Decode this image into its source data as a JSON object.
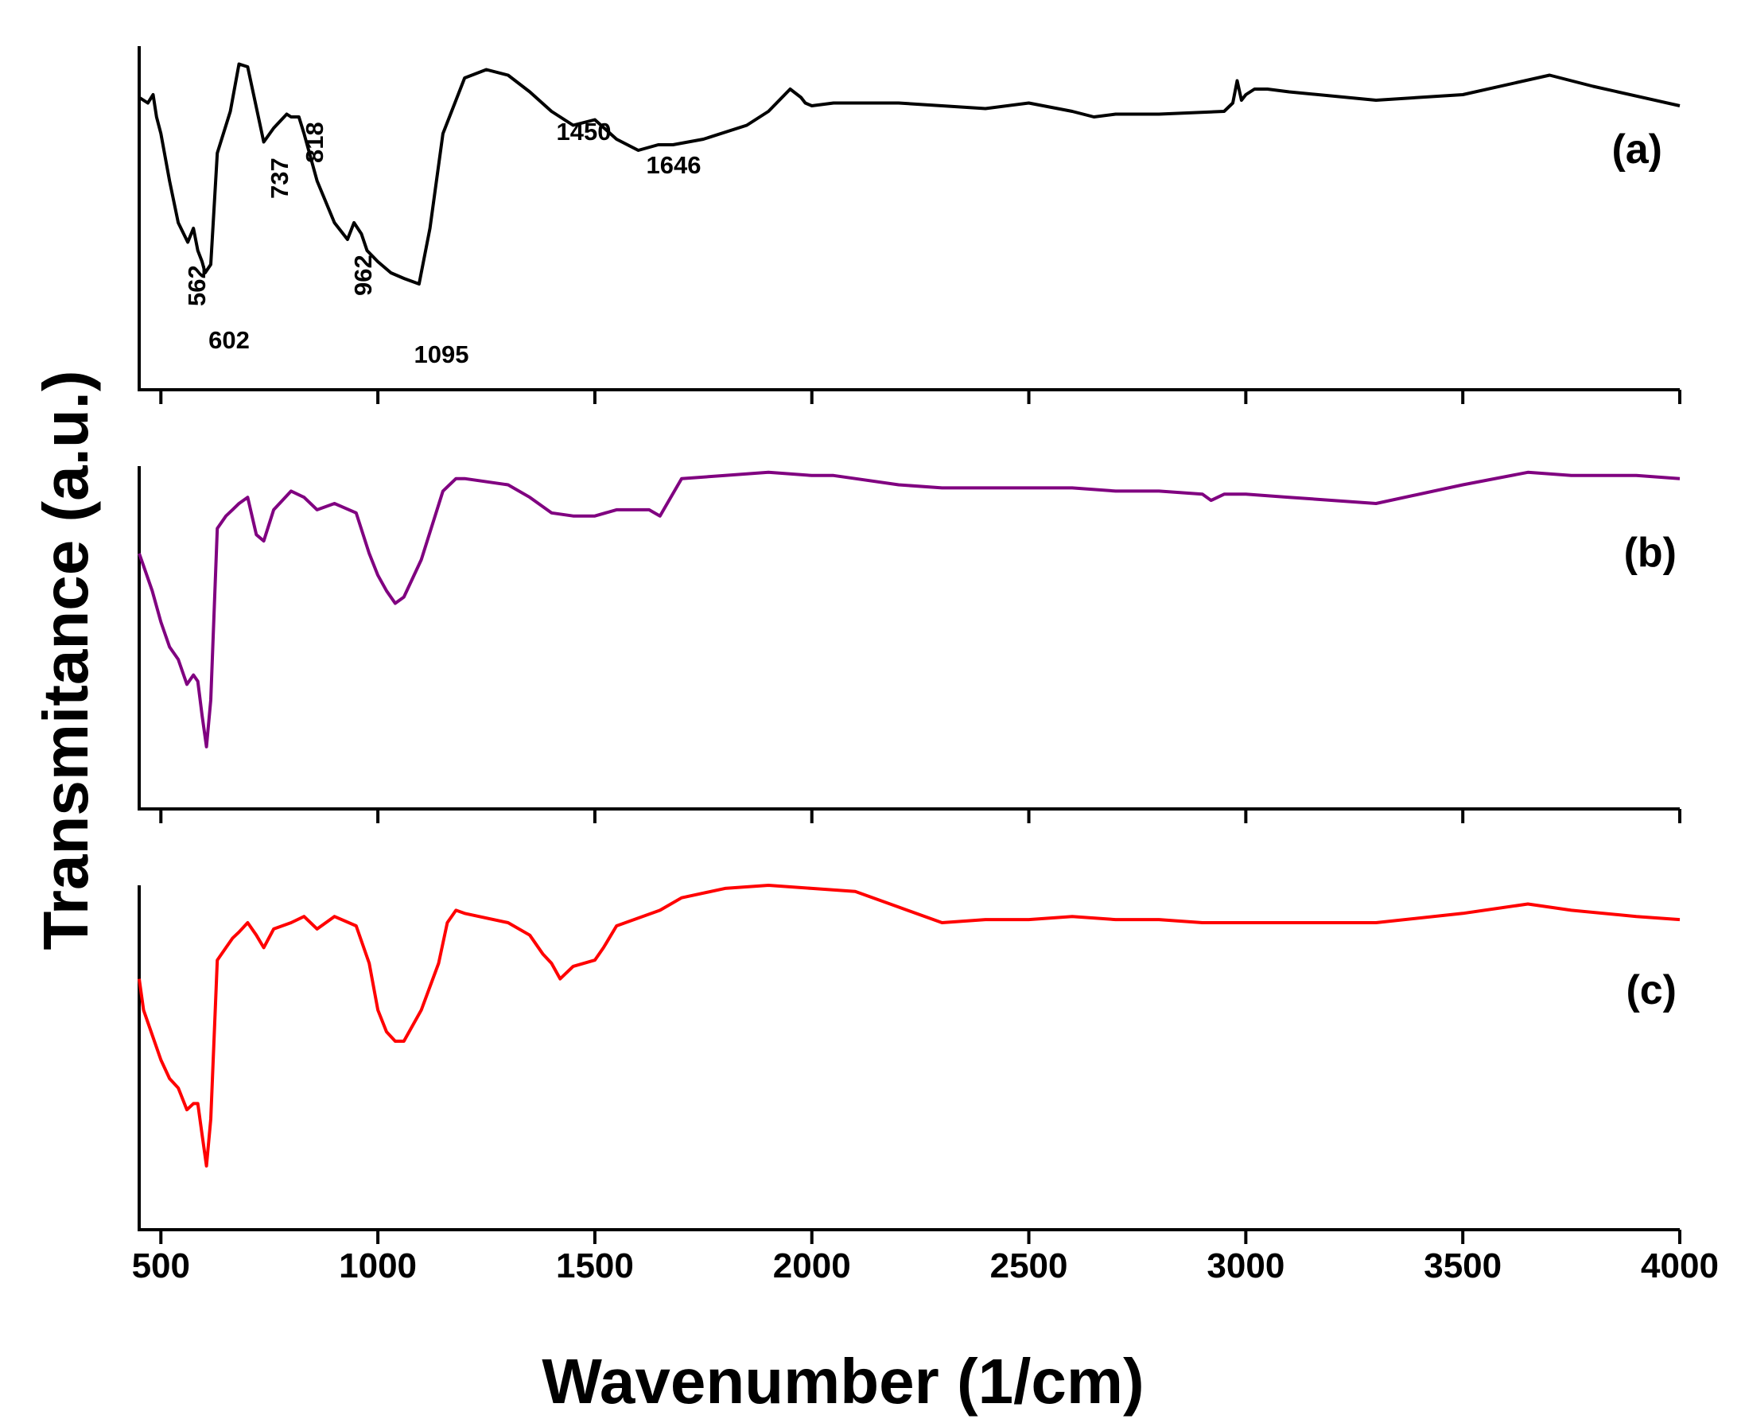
{
  "chart_data": {
    "type": "line",
    "title": "",
    "xlabel": "Wavenumber (1/cm)",
    "ylabel": "Transmitance (a.u.)",
    "xlim": [
      450,
      4000
    ],
    "x_ticks": [
      500,
      1000,
      1500,
      2000,
      2500,
      3000,
      3500,
      4000
    ],
    "x_tick_labels": [
      "500",
      "1000",
      "1500",
      "2000",
      "2500",
      "3000",
      "3500",
      "4000"
    ],
    "panels": [
      {
        "label": "(a)",
        "color": "#000000",
        "ylim": [
          0,
          100
        ],
        "x": [
          450,
          470,
          482,
          490,
          500,
          520,
          540,
          562,
          575,
          585,
          595,
          602,
          615,
          630,
          660,
          680,
          700,
          737,
          760,
          790,
          800,
          818,
          830,
          860,
          900,
          930,
          945,
          962,
          975,
          1000,
          1030,
          1060,
          1095,
          1120,
          1150,
          1200,
          1250,
          1300,
          1350,
          1400,
          1450,
          1500,
          1550,
          1600,
          1646,
          1680,
          1750,
          1850,
          1900,
          1950,
          1975,
          1985,
          2000,
          2050,
          2100,
          2200,
          2300,
          2400,
          2500,
          2600,
          2650,
          2700,
          2800,
          2950,
          2970,
          2980,
          2990,
          3000,
          3020,
          3050,
          3100,
          3300,
          3500,
          3700,
          3800,
          4000
        ],
        "values": [
          85,
          83,
          86,
          78,
          72,
          55,
          40,
          33,
          38,
          30,
          26,
          22,
          25,
          65,
          80,
          97,
          96,
          69,
          74,
          79,
          78,
          78,
          72,
          55,
          40,
          34,
          40,
          36,
          30,
          26,
          22,
          20,
          18,
          38,
          72,
          92,
          95,
          93,
          87,
          80,
          75,
          77,
          70,
          66,
          68,
          68,
          70,
          75,
          80,
          88,
          85,
          83,
          82,
          83,
          83,
          83,
          82,
          81,
          83,
          80,
          78,
          79,
          79,
          80,
          83,
          91,
          84,
          86,
          88,
          88,
          87,
          84,
          86,
          93,
          89,
          82
        ]
      },
      {
        "label": "(b)",
        "color": "#800080",
        "ylim": [
          0,
          100
        ],
        "x": [
          450,
          460,
          480,
          500,
          520,
          540,
          560,
          575,
          585,
          595,
          605,
          615,
          630,
          650,
          665,
          680,
          700,
          720,
          737,
          760,
          800,
          830,
          860,
          900,
          950,
          980,
          1000,
          1020,
          1040,
          1060,
          1100,
          1150,
          1180,
          1200,
          1300,
          1350,
          1400,
          1450,
          1500,
          1550,
          1600,
          1625,
          1650,
          1700,
          1800,
          1900,
          2000,
          2050,
          2100,
          2200,
          2300,
          2400,
          2500,
          2600,
          2700,
          2800,
          2900,
          2920,
          2950,
          3000,
          3100,
          3200,
          3300,
          3500,
          3650,
          3750,
          3900,
          4000
        ],
        "values": [
          72,
          68,
          60,
          50,
          42,
          38,
          30,
          33,
          31,
          20,
          10,
          25,
          80,
          84,
          86,
          88,
          90,
          78,
          76,
          86,
          92,
          90,
          86,
          88,
          85,
          72,
          65,
          60,
          56,
          58,
          70,
          92,
          96,
          96,
          94,
          90,
          85,
          84,
          84,
          86,
          86,
          86,
          84,
          96,
          97,
          98,
          97,
          97,
          96,
          94,
          93,
          93,
          93,
          93,
          92,
          92,
          91,
          89,
          91,
          91,
          90,
          89,
          88,
          94,
          98,
          97,
          97,
          96
        ]
      },
      {
        "label": "(c)",
        "color": "#ff0000",
        "ylim": [
          0,
          100
        ],
        "x": [
          450,
          460,
          480,
          500,
          520,
          540,
          560,
          575,
          585,
          595,
          605,
          615,
          630,
          650,
          665,
          680,
          700,
          720,
          737,
          760,
          800,
          830,
          860,
          900,
          950,
          980,
          1000,
          1020,
          1040,
          1060,
          1100,
          1140,
          1160,
          1180,
          1200,
          1300,
          1350,
          1380,
          1400,
          1420,
          1450,
          1500,
          1520,
          1550,
          1650,
          1700,
          1800,
          1900,
          2000,
          2100,
          2200,
          2300,
          2400,
          2500,
          2600,
          2700,
          2800,
          2900,
          3000,
          3100,
          3200,
          3300,
          3500,
          3650,
          3750,
          3900,
          4000
        ],
        "values": [
          70,
          60,
          52,
          44,
          38,
          35,
          28,
          30,
          30,
          20,
          10,
          25,
          76,
          80,
          83,
          85,
          88,
          84,
          80,
          86,
          88,
          90,
          86,
          90,
          87,
          75,
          60,
          53,
          50,
          50,
          60,
          75,
          88,
          92,
          91,
          88,
          84,
          78,
          75,
          70,
          74,
          76,
          80,
          87,
          92,
          96,
          99,
          100,
          99,
          98,
          93,
          88,
          89,
          89,
          90,
          89,
          89,
          88,
          88,
          88,
          88,
          88,
          91,
          94,
          92,
          90,
          89
        ]
      }
    ],
    "annotations": [
      {
        "text": "562",
        "panel": 0,
        "rotated": true
      },
      {
        "text": "602",
        "panel": 0,
        "rotated": false
      },
      {
        "text": "737",
        "panel": 0,
        "rotated": true
      },
      {
        "text": "818",
        "panel": 0,
        "rotated": true
      },
      {
        "text": "962",
        "panel": 0,
        "rotated": true
      },
      {
        "text": "1095",
        "panel": 0,
        "rotated": false
      },
      {
        "text": "1450",
        "panel": 0,
        "rotated": false
      },
      {
        "text": "1646",
        "panel": 0,
        "rotated": false
      }
    ]
  }
}
